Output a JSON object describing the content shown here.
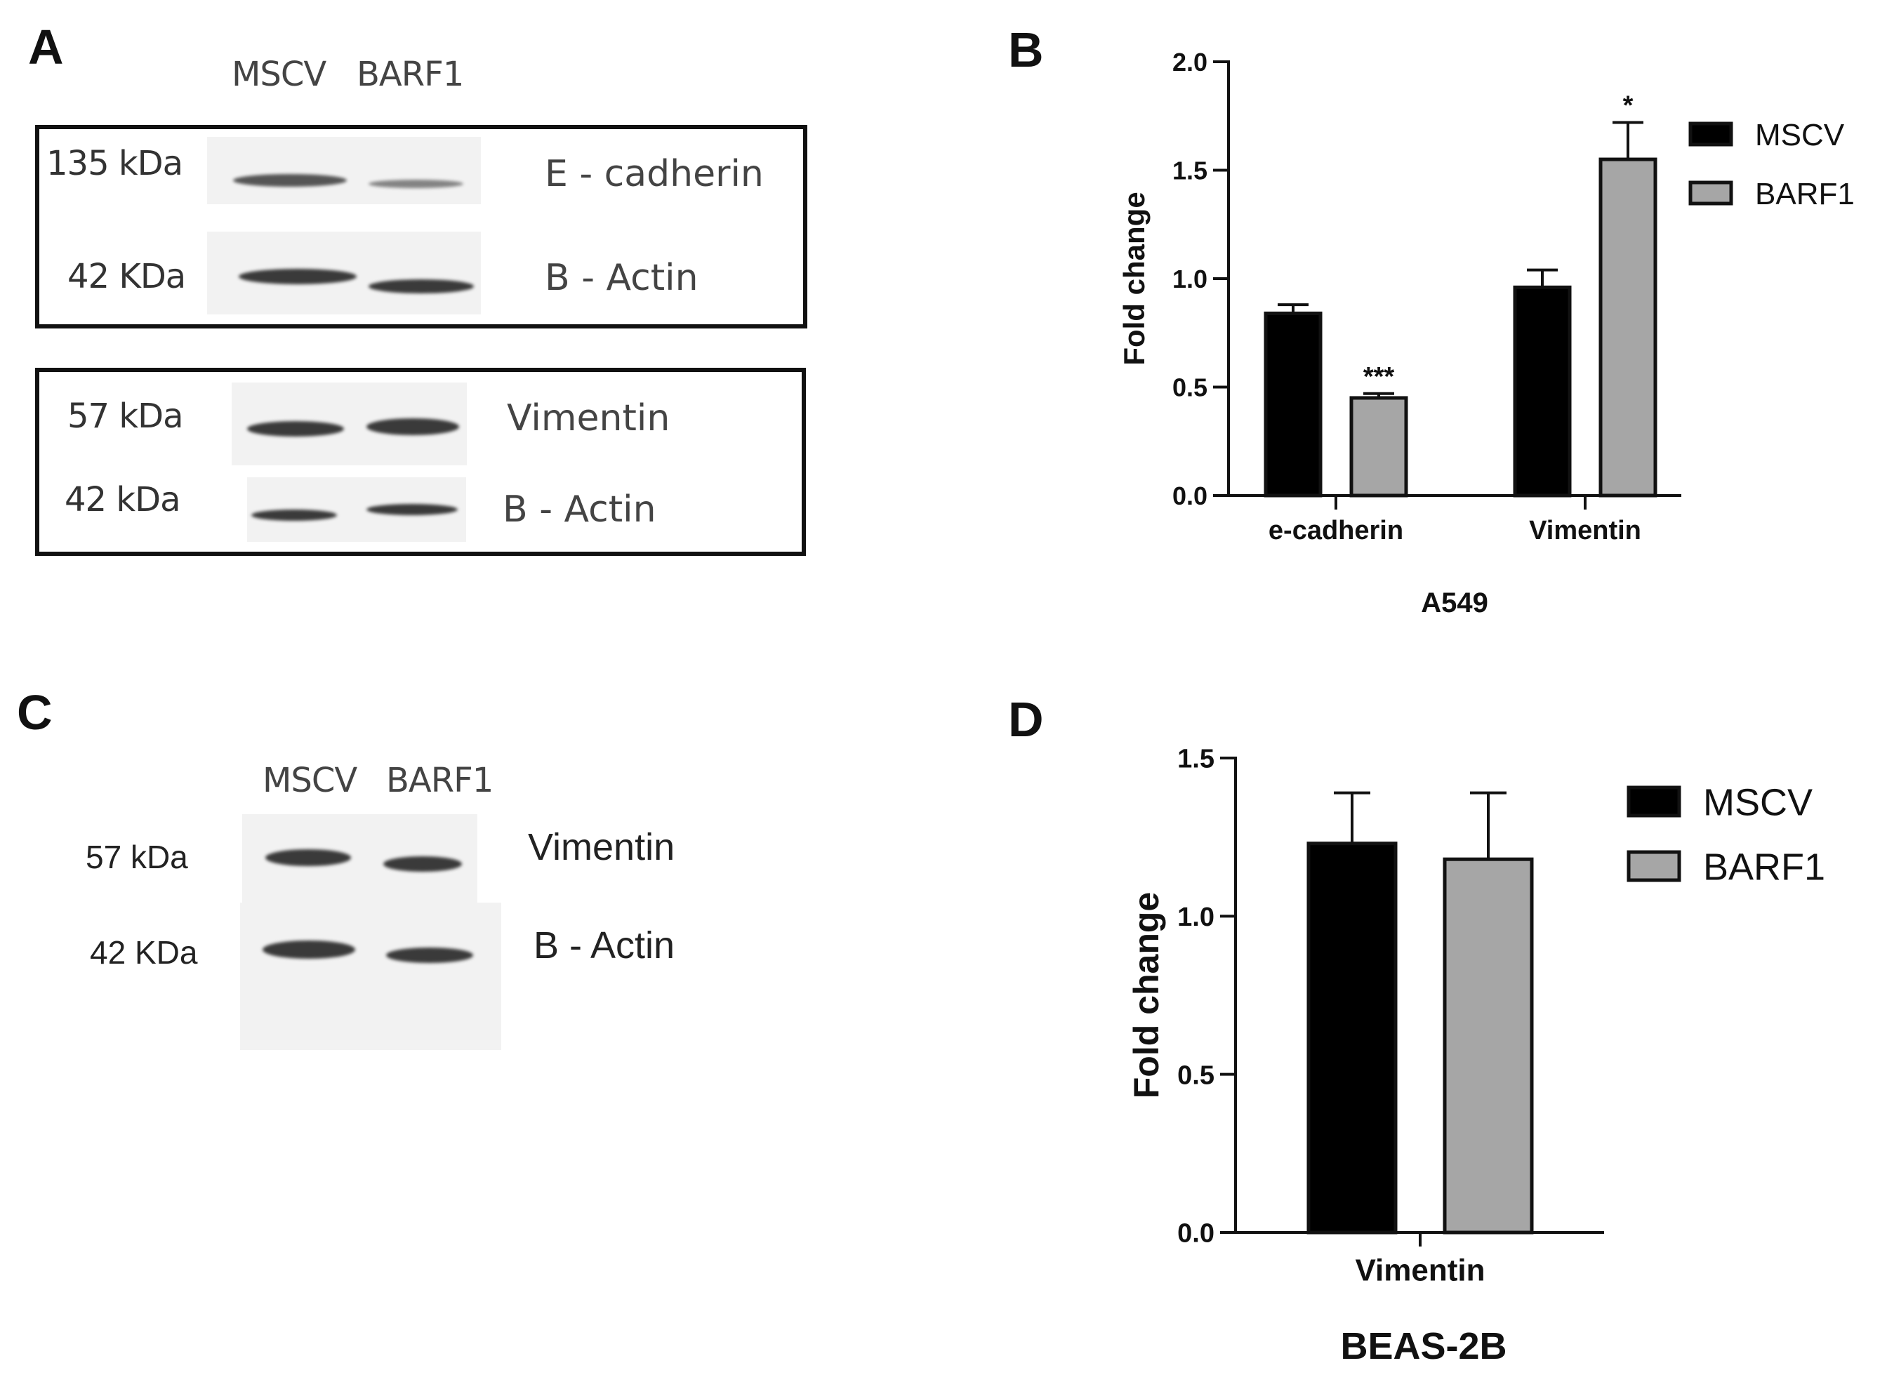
{
  "panels": {
    "a": {
      "letter": "A"
    },
    "b": {
      "letter": "B"
    },
    "c": {
      "letter": "C"
    },
    "d": {
      "letter": "D"
    }
  },
  "blot_a": {
    "lanes": [
      "MSCV",
      "BARF1"
    ],
    "box1": {
      "rows": [
        {
          "mw": "135 kDa",
          "protein": "E - cadherin",
          "band_intensity": [
            0.85,
            0.6
          ]
        },
        {
          "mw": "42 KDa",
          "protein": "B - Actin",
          "band_intensity": [
            0.95,
            0.95
          ]
        }
      ]
    },
    "box2": {
      "rows": [
        {
          "mw": "57 kDa",
          "protein": "Vimentin",
          "band_intensity": [
            0.9,
            0.95
          ]
        },
        {
          "mw": "42 kDa",
          "protein": "B - Actin",
          "band_intensity": [
            0.9,
            0.85
          ]
        }
      ]
    }
  },
  "blot_c": {
    "lanes": [
      "MSCV",
      "BARF1"
    ],
    "rows": [
      {
        "mw": "57 kDa",
        "protein": "Vimentin"
      },
      {
        "mw": "42 KDa",
        "protein": "B - Actin"
      }
    ]
  },
  "chart_data": [
    {
      "type": "bar",
      "panel": "B",
      "title": "",
      "xlabel": "A549",
      "ylabel": "Fold change",
      "categories": [
        "e-cadherin",
        "Vimentin"
      ],
      "series": [
        {
          "name": "MSCV",
          "color": "#000000",
          "values": [
            0.84,
            0.96
          ],
          "errors": [
            0.04,
            0.08
          ],
          "significance": [
            "",
            ""
          ]
        },
        {
          "name": "BARF1",
          "color": "#a6a6a6",
          "values": [
            0.45,
            1.55
          ],
          "errors": [
            0.02,
            0.17
          ],
          "significance": [
            "***",
            "*"
          ]
        }
      ],
      "ylim": [
        0,
        2.0
      ],
      "yticks": [
        0.0,
        0.5,
        1.0,
        1.5,
        2.0
      ],
      "ytick_labels": [
        "0.0",
        "0.5",
        "1.0",
        "1.5",
        "2.0"
      ],
      "legend": "right"
    },
    {
      "type": "bar",
      "panel": "D",
      "title": "",
      "xlabel": "BEAS-2B",
      "ylabel": "Fold change",
      "categories": [
        "Vimentin"
      ],
      "series": [
        {
          "name": "MSCV",
          "color": "#000000",
          "values": [
            1.23
          ],
          "errors": [
            0.16
          ],
          "significance": [
            ""
          ]
        },
        {
          "name": "BARF1",
          "color": "#a6a6a6",
          "values": [
            1.18
          ],
          "errors": [
            0.21
          ],
          "significance": [
            ""
          ]
        }
      ],
      "ylim": [
        0,
        1.5
      ],
      "yticks": [
        0.0,
        0.5,
        1.0,
        1.5
      ],
      "ytick_labels": [
        "0.0",
        "0.5",
        "1.0",
        "1.5"
      ],
      "legend": "right"
    }
  ]
}
